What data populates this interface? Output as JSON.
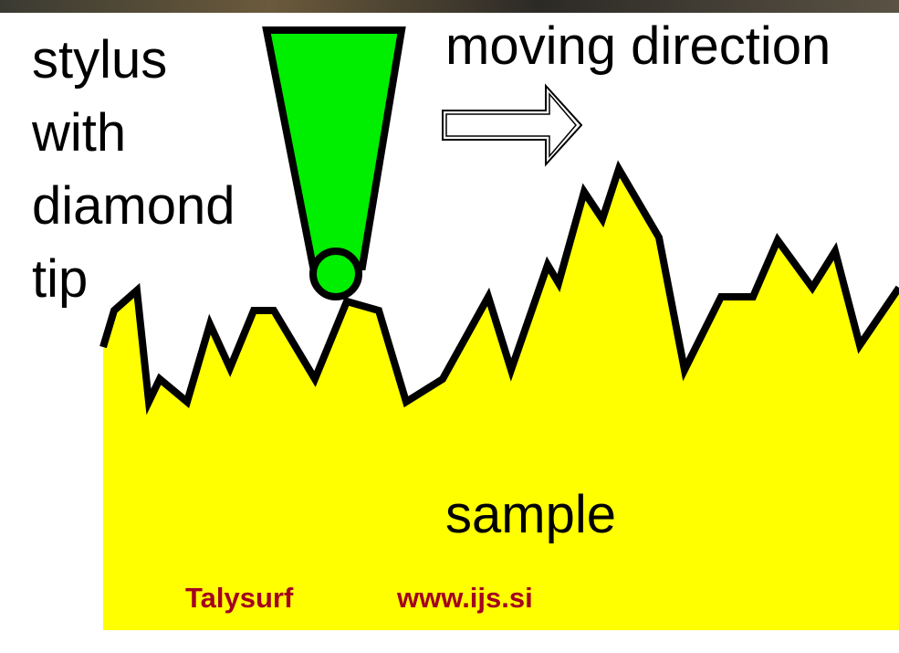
{
  "stylus_label": {
    "lines": [
      "stylus",
      "with",
      "diamond",
      "tip"
    ]
  },
  "direction_label": "moving direction",
  "sample_label": "sample",
  "footer": {
    "name": "Talysurf",
    "url": "www.ijs.si"
  }
}
